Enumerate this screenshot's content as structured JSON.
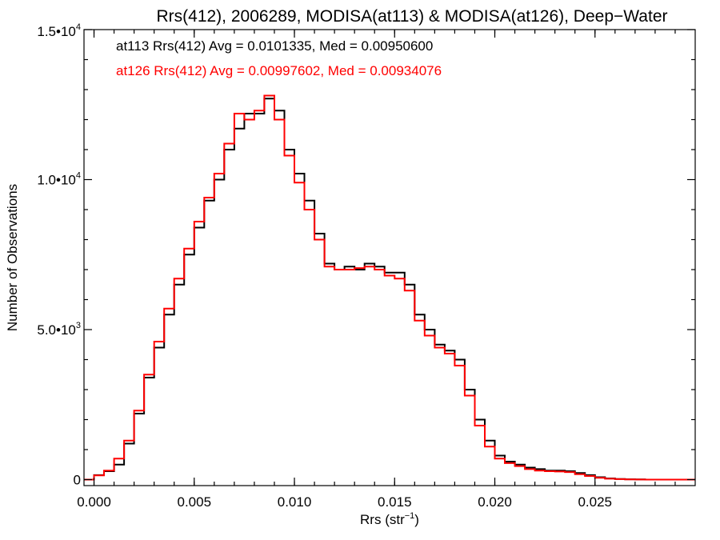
{
  "chart_data": {
    "type": "line",
    "step": true,
    "title": "Rrs(412), 2006289, MODISA(at113) & MODISA(at126), Deep−Water",
    "xlabel_main": "Rrs (str",
    "xlabel_sup": "−1",
    "xlabel_end": ")",
    "ylabel": "Number of Observations",
    "xlim": [
      -0.0005,
      0.03
    ],
    "ylim": [
      -200,
      15000
    ],
    "x_ticks": [
      {
        "value": 0.0,
        "label": "0.000"
      },
      {
        "value": 0.005,
        "label": "0.005"
      },
      {
        "value": 0.01,
        "label": "0.010"
      },
      {
        "value": 0.015,
        "label": "0.015"
      },
      {
        "value": 0.02,
        "label": "0.020"
      },
      {
        "value": 0.025,
        "label": "0.025"
      }
    ],
    "y_ticks": [
      {
        "value": 0,
        "base": "0",
        "sup": ""
      },
      {
        "value": 5000,
        "base": "5.0•10",
        "sup": "3"
      },
      {
        "value": 10000,
        "base": "1.0•10",
        "sup": "4"
      },
      {
        "value": 15000,
        "base": "1.5•10",
        "sup": "4"
      }
    ],
    "annotations": [
      {
        "text": "at113 Rrs(412) Avg = 0.0101335, Med = 0.00950600",
        "color": "#000000"
      },
      {
        "text": "at126 Rrs(412) Avg = 0.00997602, Med = 0.00934076",
        "color": "#ff0000"
      }
    ],
    "x": [
      -0.0005,
      0.0,
      0.0005,
      0.001,
      0.0015,
      0.002,
      0.0025,
      0.003,
      0.0035,
      0.004,
      0.0045,
      0.005,
      0.0055,
      0.006,
      0.0065,
      0.007,
      0.0075,
      0.008,
      0.0085,
      0.009,
      0.0095,
      0.01,
      0.0105,
      0.011,
      0.0115,
      0.012,
      0.0125,
      0.013,
      0.0135,
      0.014,
      0.0145,
      0.015,
      0.0155,
      0.016,
      0.0165,
      0.017,
      0.0175,
      0.018,
      0.0185,
      0.019,
      0.0195,
      0.02,
      0.0205,
      0.021,
      0.0215,
      0.022,
      0.0225,
      0.023,
      0.0235,
      0.024,
      0.0245,
      0.025,
      0.0255,
      0.026,
      0.0265,
      0.027,
      0.0275,
      0.028,
      0.0285,
      0.029,
      0.0295,
      0.03
    ],
    "series": [
      {
        "color": "#000000",
        "values": [
          0,
          150,
          280,
          500,
          1200,
          2200,
          3400,
          4400,
          5500,
          6500,
          7500,
          8400,
          9300,
          10000,
          11000,
          11700,
          12200,
          12200,
          12700,
          12300,
          11000,
          10200,
          9300,
          8200,
          7200,
          7000,
          7100,
          7000,
          7200,
          7100,
          6900,
          6900,
          6500,
          5500,
          5000,
          4500,
          4300,
          4000,
          3000,
          2000,
          1300,
          800,
          600,
          500,
          400,
          350,
          300,
          300,
          280,
          220,
          150,
          80,
          40,
          20,
          10,
          5,
          0,
          0,
          0,
          0,
          0,
          0
        ]
      },
      {
        "color": "#ff0000",
        "values": [
          0,
          140,
          300,
          700,
          1300,
          2300,
          3500,
          4600,
          5700,
          6700,
          7700,
          8600,
          9400,
          10200,
          11200,
          12200,
          12000,
          12300,
          12800,
          12000,
          10800,
          9900,
          9000,
          8000,
          7100,
          7000,
          7000,
          7050,
          7100,
          7000,
          6800,
          6700,
          6300,
          5300,
          4800,
          4400,
          4200,
          3800,
          2800,
          1800,
          1100,
          700,
          550,
          450,
          350,
          300,
          280,
          270,
          250,
          180,
          120,
          60,
          30,
          15,
          8,
          4,
          0,
          0,
          0,
          0,
          0,
          0
        ]
      }
    ]
  }
}
